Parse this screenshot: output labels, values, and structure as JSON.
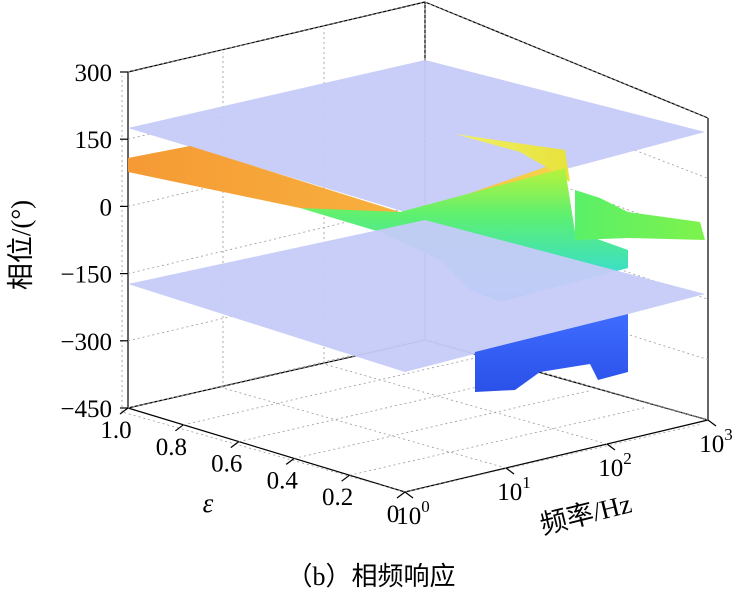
{
  "caption": "（b）相频响应",
  "chart_data": {
    "type": "surface",
    "title": "",
    "zlabel": "相位/(°)",
    "zlim": [
      -450,
      300
    ],
    "zticks": [
      {
        "value": 300,
        "label": "300"
      },
      {
        "value": 150,
        "label": "150"
      },
      {
        "value": 0,
        "label": "0"
      },
      {
        "value": -150,
        "label": "−150"
      },
      {
        "value": -300,
        "label": "−300"
      },
      {
        "value": -450,
        "label": "−450"
      }
    ],
    "ylabel": "ε",
    "yticks": [
      "1.0",
      "0.8",
      "0.6",
      "0.4",
      "0.2",
      "0"
    ],
    "xlabel": "频率/Hz",
    "xscale": "log",
    "xticks": [
      {
        "base": "10",
        "exp": "0"
      },
      {
        "base": "10",
        "exp": "1"
      },
      {
        "base": "10",
        "exp": "2"
      },
      {
        "base": "10",
        "exp": "3"
      }
    ],
    "reference_planes": [
      180,
      -180
    ],
    "grid": true
  }
}
